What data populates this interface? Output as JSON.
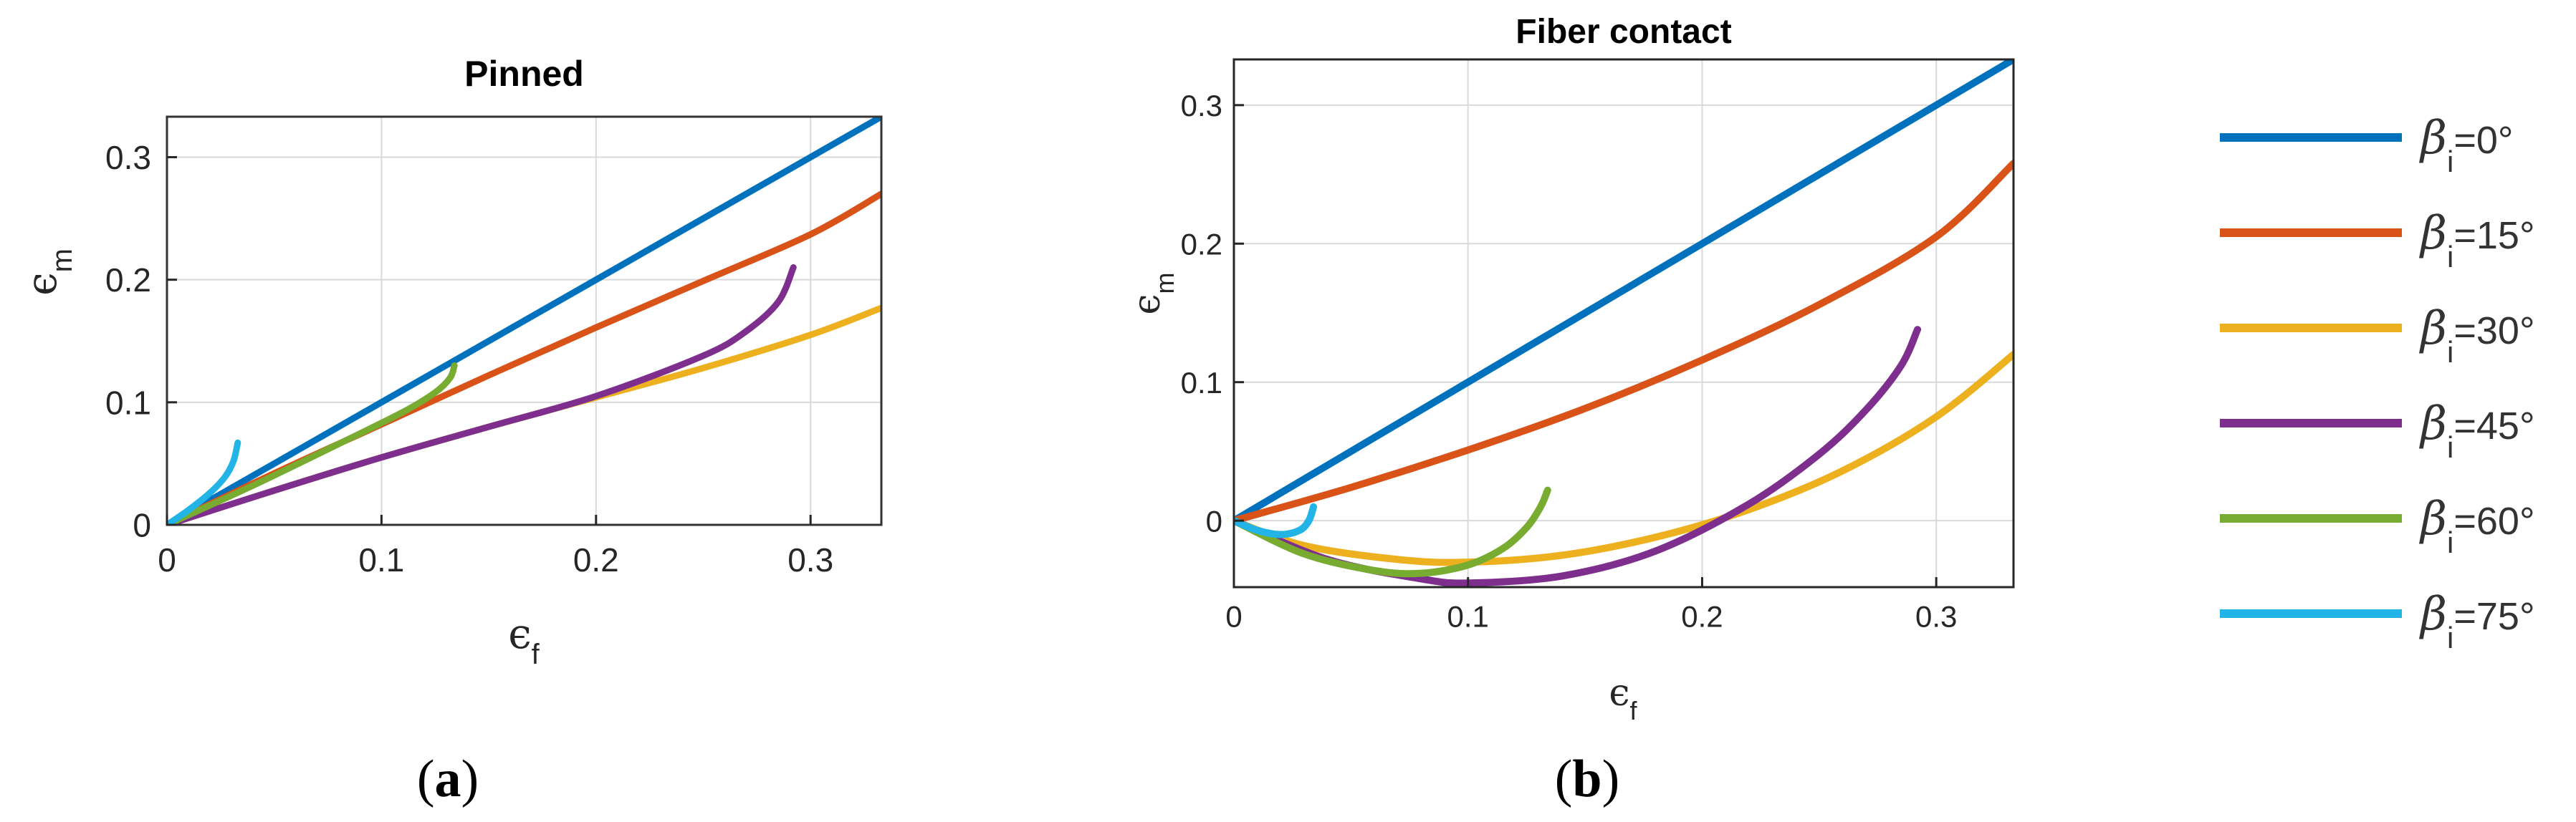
{
  "chart_data": [
    {
      "type": "line",
      "title": "Pinned",
      "subplot_label": "a",
      "xlabel": "f",
      "ylabel": "m",
      "xlim": [
        0,
        0.333
      ],
      "ylim": [
        0,
        0.333
      ],
      "xticks": [
        0,
        0.1,
        0.2,
        0.3
      ],
      "yticks": [
        0,
        0.1,
        0.2,
        0.3
      ],
      "xtick_labels": [
        "0",
        "0.1",
        "0.2",
        "0.3"
      ],
      "ytick_labels": [
        "0",
        "0.1",
        "0.2",
        "0.3"
      ],
      "grid": true,
      "series": [
        {
          "name": "βi=0°",
          "color": "#0072BD",
          "x": [
            0,
            0.1,
            0.2,
            0.333
          ],
          "y": [
            0,
            0.1,
            0.2,
            0.333
          ]
        },
        {
          "name": "βi=15°",
          "color": "#D95319",
          "x": [
            0,
            0.05,
            0.1,
            0.15,
            0.2,
            0.25,
            0.3,
            0.333
          ],
          "y": [
            0,
            0.042,
            0.082,
            0.122,
            0.161,
            0.199,
            0.237,
            0.27
          ]
        },
        {
          "name": "βi=30°",
          "color": "#EDB120",
          "x": [
            0,
            0.05,
            0.1,
            0.15,
            0.2,
            0.25,
            0.3,
            0.333
          ],
          "y": [
            0,
            0.028,
            0.055,
            0.08,
            0.104,
            0.128,
            0.155,
            0.177
          ]
        },
        {
          "name": "βi=45°",
          "color": "#7E2F8E",
          "x": [
            0,
            0.05,
            0.1,
            0.15,
            0.2,
            0.25,
            0.27,
            0.285,
            0.292
          ],
          "y": [
            0,
            0.028,
            0.055,
            0.08,
            0.105,
            0.138,
            0.158,
            0.182,
            0.21
          ]
        },
        {
          "name": "βi=60°",
          "color": "#77AC30",
          "x": [
            0,
            0.04,
            0.08,
            0.11,
            0.125,
            0.132,
            0.134
          ],
          "y": [
            0,
            0.032,
            0.066,
            0.092,
            0.108,
            0.12,
            0.13
          ]
        },
        {
          "name": "βi=75°",
          "color": "#22B4E6",
          "x": [
            0,
            0.01,
            0.02,
            0.027,
            0.031,
            0.033
          ],
          "y": [
            0,
            0.012,
            0.026,
            0.039,
            0.052,
            0.067
          ]
        }
      ]
    },
    {
      "type": "line",
      "title": "Fiber contact",
      "subplot_label": "b",
      "xlabel": "f",
      "ylabel": "m",
      "xlim": [
        0,
        0.333
      ],
      "ylim": [
        -0.048,
        0.333
      ],
      "xticks": [
        0,
        0.1,
        0.2,
        0.3
      ],
      "yticks": [
        0,
        0.1,
        0.2,
        0.3
      ],
      "xtick_labels": [
        "0",
        "0.1",
        "0.2",
        "0.3"
      ],
      "ytick_labels": [
        "0",
        "0.1",
        "0.2",
        "0.3"
      ],
      "grid": true,
      "series": [
        {
          "name": "βi=0°",
          "color": "#0072BD",
          "x": [
            0,
            0.1,
            0.2,
            0.333
          ],
          "y": [
            0,
            0.1,
            0.2,
            0.333
          ]
        },
        {
          "name": "βi=15°",
          "color": "#D95319",
          "x": [
            0,
            0.05,
            0.1,
            0.15,
            0.2,
            0.25,
            0.3,
            0.333
          ],
          "y": [
            0,
            0.024,
            0.051,
            0.081,
            0.116,
            0.156,
            0.205,
            0.258
          ]
        },
        {
          "name": "βi=30°",
          "color": "#EDB120",
          "x": [
            0,
            0.03,
            0.07,
            0.1,
            0.14,
            0.18,
            0.22,
            0.26,
            0.3,
            0.333
          ],
          "y": [
            0,
            -0.018,
            -0.028,
            -0.03,
            -0.025,
            -0.012,
            0.008,
            0.036,
            0.075,
            0.12
          ]
        },
        {
          "name": "βi=45°",
          "color": "#7E2F8E",
          "x": [
            0,
            0.04,
            0.08,
            0.1,
            0.14,
            0.18,
            0.22,
            0.25,
            0.27,
            0.285,
            0.292
          ],
          "y": [
            0,
            -0.028,
            -0.042,
            -0.045,
            -0.04,
            -0.022,
            0.012,
            0.048,
            0.08,
            0.112,
            0.138
          ]
        },
        {
          "name": "βi=60°",
          "color": "#77AC30",
          "x": [
            0,
            0.03,
            0.06,
            0.08,
            0.1,
            0.115,
            0.125,
            0.131,
            0.134
          ],
          "y": [
            0,
            -0.024,
            -0.036,
            -0.038,
            -0.032,
            -0.02,
            -0.005,
            0.01,
            0.022
          ]
        },
        {
          "name": "βi=75°",
          "color": "#22B4E6",
          "x": [
            0,
            0.01,
            0.02,
            0.028,
            0.032,
            0.034
          ],
          "y": [
            0,
            -0.007,
            -0.01,
            -0.007,
            0.0,
            0.01
          ]
        }
      ]
    }
  ],
  "axis_symbol": "ϵ",
  "legend": {
    "entries": [
      {
        "beta": "β",
        "sub": "i",
        "label": "=0°",
        "color": "#0072BD"
      },
      {
        "beta": "β",
        "sub": "i",
        "label": "=15°",
        "color": "#D95319"
      },
      {
        "beta": "β",
        "sub": "i",
        "label": "=30°",
        "color": "#EDB120"
      },
      {
        "beta": "β",
        "sub": "i",
        "label": "=45°",
        "color": "#7E2F8E"
      },
      {
        "beta": "β",
        "sub": "i",
        "label": "=60°",
        "color": "#77AC30"
      },
      {
        "beta": "β",
        "sub": "i",
        "label": "=75°",
        "color": "#22B4E6"
      }
    ]
  }
}
